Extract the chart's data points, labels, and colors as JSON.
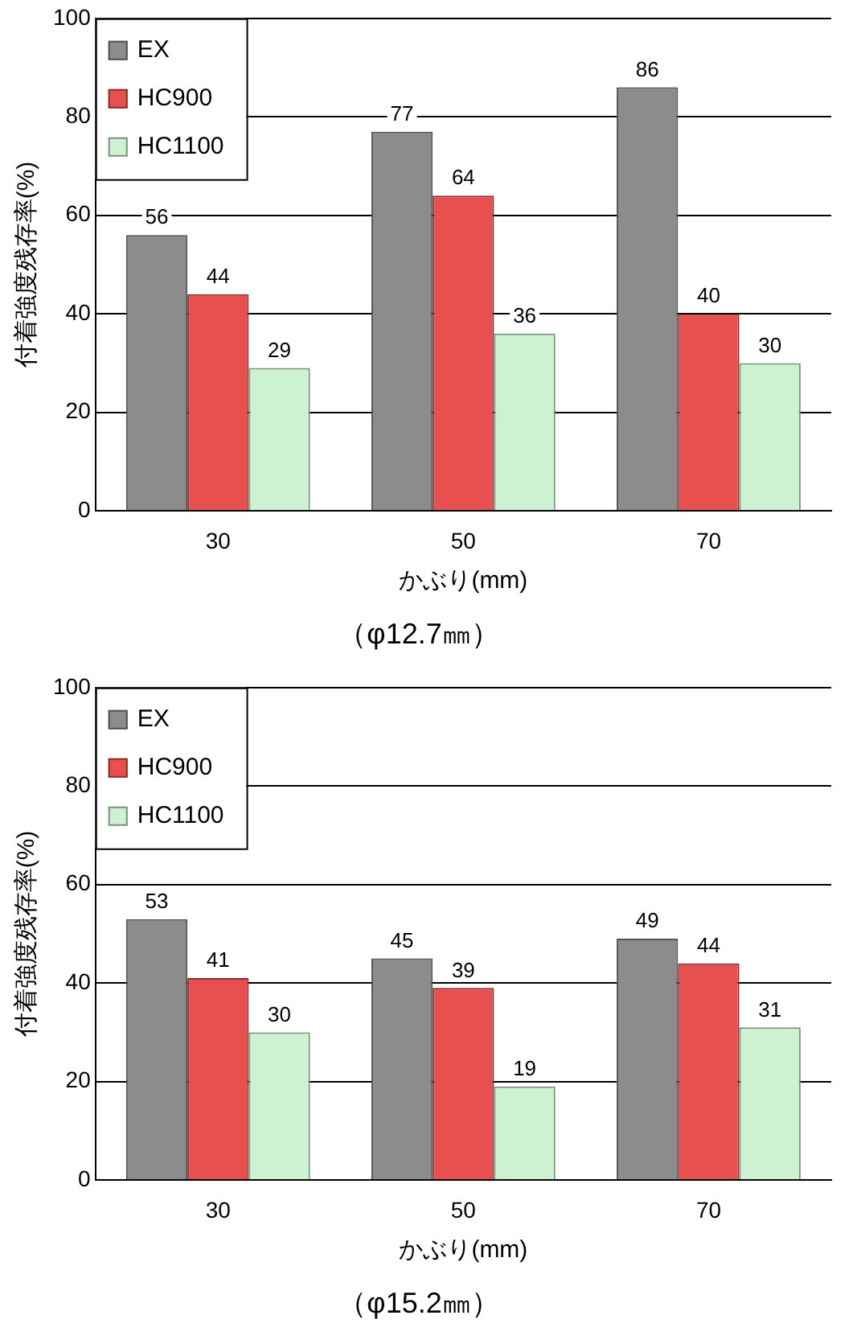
{
  "chart_data": [
    {
      "type": "bar",
      "title": "（φ12.7㎜）",
      "xlabel": "かぶり(mm)",
      "ylabel": "付着強度残存率(%)",
      "categories": [
        "30",
        "50",
        "70"
      ],
      "series": [
        {
          "name": "EX",
          "color": "#8c8c8c",
          "values": [
            56,
            77,
            86
          ]
        },
        {
          "name": "HC900",
          "color": "#e8504f",
          "values": [
            44,
            64,
            40
          ]
        },
        {
          "name": "HC1100",
          "color": "#cdf2d2",
          "values": [
            29,
            36,
            30
          ]
        }
      ],
      "ylim": [
        0,
        100
      ],
      "yticks": [
        0,
        20,
        40,
        60,
        80,
        100
      ],
      "grid": "y",
      "legend": "top left",
      "data_labels": true
    },
    {
      "type": "bar",
      "title": "（φ15.2㎜）",
      "xlabel": "かぶり(mm)",
      "ylabel": "付着強度残存率(%)",
      "categories": [
        "30",
        "50",
        "70"
      ],
      "series": [
        {
          "name": "EX",
          "color": "#8c8c8c",
          "values": [
            53,
            45,
            49
          ]
        },
        {
          "name": "HC900",
          "color": "#e8504f",
          "values": [
            41,
            39,
            44
          ]
        },
        {
          "name": "HC1100",
          "color": "#cdf2d2",
          "values": [
            30,
            19,
            31
          ]
        }
      ],
      "ylim": [
        0,
        100
      ],
      "yticks": [
        0,
        20,
        40,
        60,
        80,
        100
      ],
      "grid": "y",
      "legend": "top left",
      "data_labels": true
    }
  ]
}
